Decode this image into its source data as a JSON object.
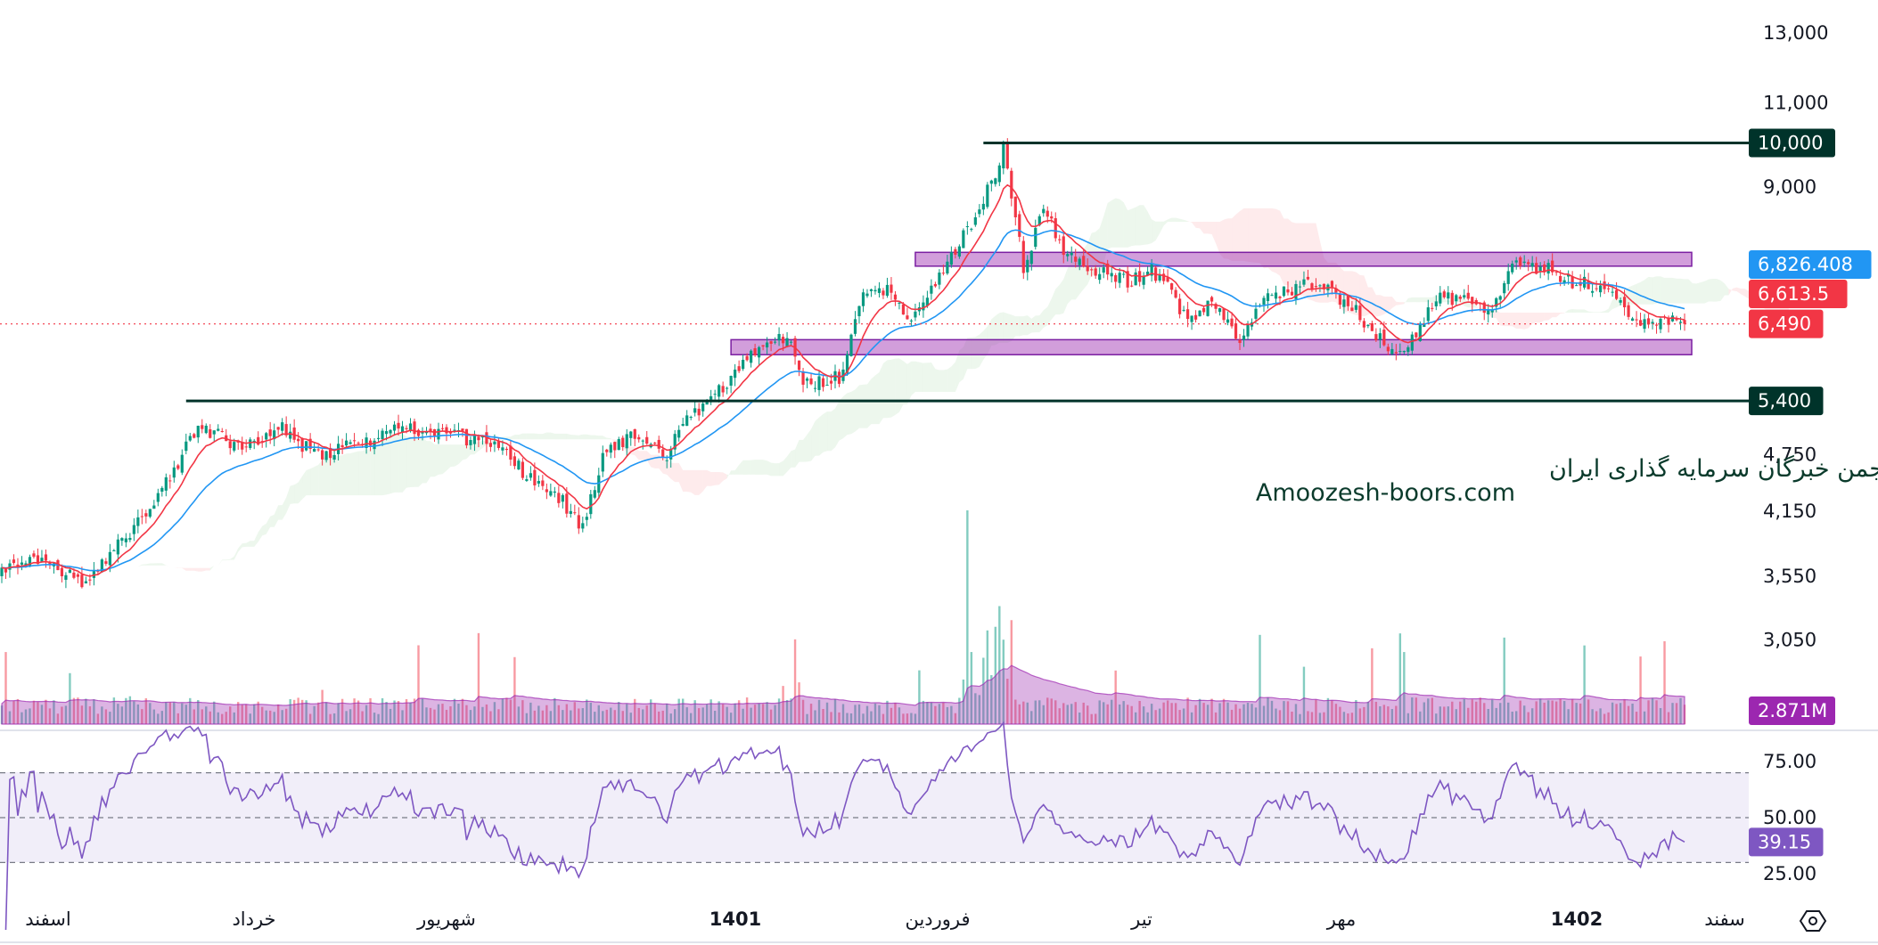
{
  "chart_data": {
    "type": "candlestick",
    "price_scale": "log",
    "price_axis_ticks": [
      "13,000",
      "11,000",
      "9,000",
      "4,750",
      "4,150",
      "3,550",
      "3,050"
    ],
    "price_axis_tick_values": [
      13000,
      11000,
      9000,
      4750,
      4150,
      3550,
      3050
    ],
    "rsi_axis_ticks": [
      "75.00",
      "50.00",
      "25.00"
    ],
    "rsi_axis_tick_values": [
      75,
      50,
      25
    ],
    "rsi_levels": [
      70,
      50,
      30
    ],
    "time_axis_labels": [
      "اسفند",
      "خرداد",
      "شهریور",
      "1401",
      "فروردین",
      "تیر",
      "مهر",
      "1402",
      "سفند"
    ],
    "bar_count": 421,
    "price_path": [
      [
        0,
        3566
      ],
      [
        9,
        3722
      ],
      [
        21,
        3465
      ],
      [
        33,
        3999
      ],
      [
        42,
        4482
      ],
      [
        49,
        5100
      ],
      [
        60,
        4815
      ],
      [
        69,
        5100
      ],
      [
        78,
        4745
      ],
      [
        90,
        4884
      ],
      [
        99,
        5100
      ],
      [
        114,
        4955
      ],
      [
        123,
        4884
      ],
      [
        132,
        4482
      ],
      [
        139,
        4295
      ],
      [
        145,
        3999
      ],
      [
        150,
        4745
      ],
      [
        156,
        4955
      ],
      [
        166,
        4745
      ],
      [
        170,
        5100
      ],
      [
        179,
        5555
      ],
      [
        188,
        6052
      ],
      [
        196,
        6317
      ],
      [
        200,
        5634
      ],
      [
        209,
        5715
      ],
      [
        215,
        6883
      ],
      [
        221,
        7083
      ],
      [
        227,
        6500
      ],
      [
        236,
        7500
      ],
      [
        242,
        8290
      ],
      [
        248,
        9294
      ],
      [
        250,
        9842
      ],
      [
        252,
        8904
      ],
      [
        255,
        7393
      ],
      [
        260,
        8530
      ],
      [
        266,
        7609
      ],
      [
        272,
        7393
      ],
      [
        281,
        7185
      ],
      [
        287,
        7393
      ],
      [
        291,
        7083
      ],
      [
        296,
        6500
      ],
      [
        302,
        6883
      ],
      [
        309,
        6228
      ],
      [
        314,
        6883
      ],
      [
        329,
        7185
      ],
      [
        338,
        6690
      ],
      [
        347,
        6052
      ],
      [
        353,
        6317
      ],
      [
        359,
        6985
      ],
      [
        371,
        6690
      ],
      [
        378,
        7500
      ],
      [
        386,
        7393
      ],
      [
        392,
        7185
      ],
      [
        401,
        7083
      ],
      [
        408,
        6500
      ],
      [
        416,
        6530
      ],
      [
        420,
        6490
      ]
    ],
    "horizontal_levels": [
      {
        "label": "10,000",
        "price": 10000,
        "from_bar": 245
      },
      {
        "label": "5,400",
        "price": 5400,
        "from_bar": 46
      }
    ],
    "zones": [
      {
        "from_bar": 228,
        "price_low": 7450,
        "price_high": 7700
      },
      {
        "from_bar": 182,
        "price_low": 6030,
        "price_high": 6250
      }
    ],
    "last_price": {
      "label": "6,490",
      "value": 6490
    },
    "ma_fast": {
      "label": "6,613.5",
      "value": 6613.5,
      "color": "#F23645"
    },
    "ma_slow": {
      "label": "6,826.408",
      "value": 6826.408,
      "color": "#2196F3"
    },
    "volume_ma": {
      "label": "2.871M",
      "color": "#9C27B0"
    },
    "rsi": {
      "label": "39.15",
      "value": 39.15,
      "color": "#7E57C2"
    },
    "colors": {
      "up": "#089981",
      "down": "#F23645",
      "level": "#00332A",
      "zone": "#9C27B0"
    }
  },
  "watermark": {
    "line1": "انجمن خبرگان سرمایه گذاری ایران",
    "line2": "Amoozesh-boors.com"
  },
  "toolbar": {
    "settings_icon": "hexagon-gear-icon"
  }
}
